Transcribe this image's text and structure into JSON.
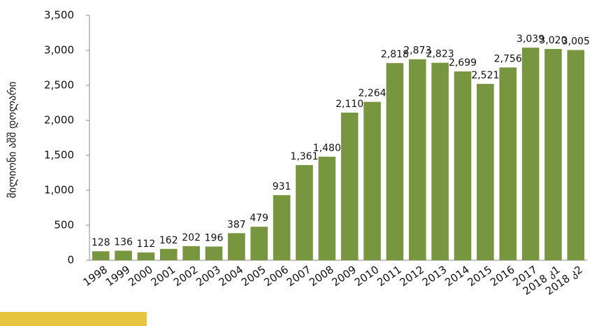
{
  "chart_data": {
    "type": "bar",
    "y_label": "მილიონი აშშ დოლარი",
    "categories": [
      "1998",
      "1999",
      "2000",
      "2001",
      "2002",
      "2003",
      "2004",
      "2005",
      "2006",
      "2007",
      "2008",
      "2009",
      "2010",
      "2011",
      "2012",
      "2013",
      "2014",
      "2015",
      "2016",
      "2017",
      "2018 კ1",
      "2018 კ2"
    ],
    "values": [
      128,
      136,
      112,
      162,
      202,
      196,
      387,
      479,
      931,
      1361,
      1480,
      2110,
      2264,
      2818,
      2873,
      2823,
      2699,
      2521,
      2756,
      3039,
      3020,
      3005
    ],
    "value_labels": [
      "128",
      "136",
      "112",
      "162",
      "202",
      "196",
      "387",
      "479",
      "931",
      "1,361",
      "1,480",
      "2,110",
      "2,264",
      "2,818",
      "2,873",
      "2,823",
      "2,699",
      "2,521",
      "2,756",
      "3,039",
      "3,020",
      "3,005"
    ],
    "color": "#77963f",
    "ylim": [
      0,
      3500
    ],
    "yticks": [
      0,
      500,
      {
        "value": 1000,
        "label": "1,000"
      },
      {
        "value": 1500,
        "label": "1,500"
      },
      {
        "value": 2000,
        "label": "2,000"
      },
      {
        "value": 2500,
        "label": "2,500"
      },
      {
        "value": 3000,
        "label": "3,000"
      },
      {
        "value": 3500,
        "label": "3,500"
      }
    ],
    "grid": false
  }
}
